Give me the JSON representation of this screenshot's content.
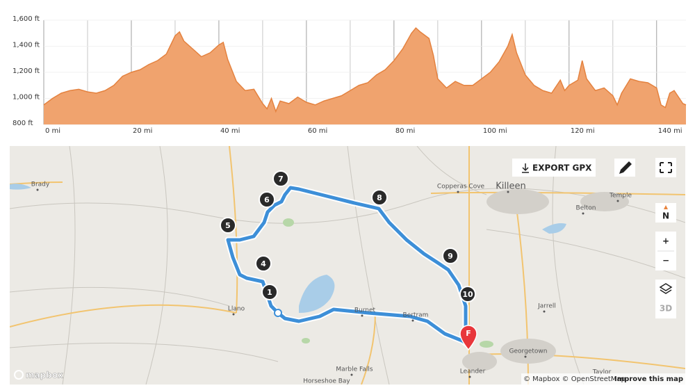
{
  "chart_data": {
    "type": "area",
    "x": [
      0,
      2,
      4,
      6,
      8,
      10,
      12,
      14,
      16,
      18,
      20,
      22,
      24,
      26,
      28,
      30,
      31,
      32,
      34,
      36,
      38,
      40,
      41,
      42,
      44,
      46,
      48,
      50,
      51,
      52,
      53,
      54,
      56,
      58,
      60,
      62,
      64,
      66,
      68,
      70,
      72,
      74,
      76,
      78,
      80,
      82,
      84,
      85,
      86,
      88,
      89,
      90,
      92,
      94,
      96,
      98,
      100,
      102,
      104,
      106,
      107,
      108,
      110,
      112,
      114,
      116,
      118,
      119,
      120,
      122,
      123,
      124,
      126,
      128,
      130,
      131,
      132,
      134,
      136,
      138,
      140,
      141,
      142,
      143,
      144,
      146,
      146.7
    ],
    "values": [
      950,
      1000,
      1040,
      1060,
      1070,
      1050,
      1040,
      1060,
      1100,
      1170,
      1200,
      1220,
      1260,
      1290,
      1340,
      1480,
      1510,
      1440,
      1380,
      1320,
      1350,
      1410,
      1430,
      1300,
      1130,
      1060,
      1070,
      960,
      920,
      1000,
      900,
      980,
      960,
      1010,
      970,
      950,
      980,
      1000,
      1020,
      1060,
      1100,
      1120,
      1180,
      1220,
      1290,
      1380,
      1500,
      1540,
      1510,
      1460,
      1330,
      1150,
      1080,
      1130,
      1100,
      1100,
      1150,
      1200,
      1280,
      1400,
      1490,
      1350,
      1180,
      1100,
      1060,
      1040,
      1140,
      1060,
      1100,
      1140,
      1290,
      1150,
      1060,
      1080,
      1020,
      950,
      1040,
      1150,
      1130,
      1120,
      1080,
      950,
      930,
      1040,
      1060,
      960,
      950
    ],
    "color": "#f0a36e",
    "line_color": "#e4823f",
    "xlim": [
      0,
      146.7
    ],
    "ylim": [
      800,
      1600
    ],
    "xticks": [
      {
        "value": 0,
        "label": "0 mi"
      },
      {
        "value": 20,
        "label": "20 mi"
      },
      {
        "value": 40,
        "label": "40 mi"
      },
      {
        "value": 60,
        "label": "60 mi"
      },
      {
        "value": 80,
        "label": "80 mi"
      },
      {
        "value": 100,
        "label": "100 mi"
      },
      {
        "value": 120,
        "label": "120 mi"
      },
      {
        "value": 140,
        "label": "140 mi"
      }
    ],
    "xgrid": [
      10,
      30,
      50,
      70,
      90,
      110,
      130
    ],
    "yticks": [
      {
        "value": 800,
        "label": "800 ft"
      },
      {
        "value": 1000,
        "label": "1,000 ft"
      },
      {
        "value": 1200,
        "label": "1,200 ft"
      },
      {
        "value": 1400,
        "label": "1,400 ft"
      },
      {
        "value": 1600,
        "label": "1,600 ft"
      }
    ],
    "grid": true
  },
  "map": {
    "export_button": "EXPORT GPX",
    "compass": "N",
    "zoom_in": "+",
    "zoom_out": "−",
    "mode_3d": "3D",
    "logo": "mapbox",
    "attribution": "© Mapbox © OpenStreetMap",
    "improve_link": "Improve this map",
    "waypoints": [
      "1",
      "4",
      "5",
      "6",
      "7",
      "8",
      "9",
      "10"
    ],
    "finish": "F",
    "places": [
      "Brady",
      "Llano",
      "Burnet",
      "Bertram",
      "Marble Falls",
      "Horseshoe Bay",
      "Leander",
      "Georgetown",
      "Jarrell",
      "Killeen",
      "Copperas Cove",
      "Belton",
      "Temple",
      "Taylor"
    ]
  }
}
